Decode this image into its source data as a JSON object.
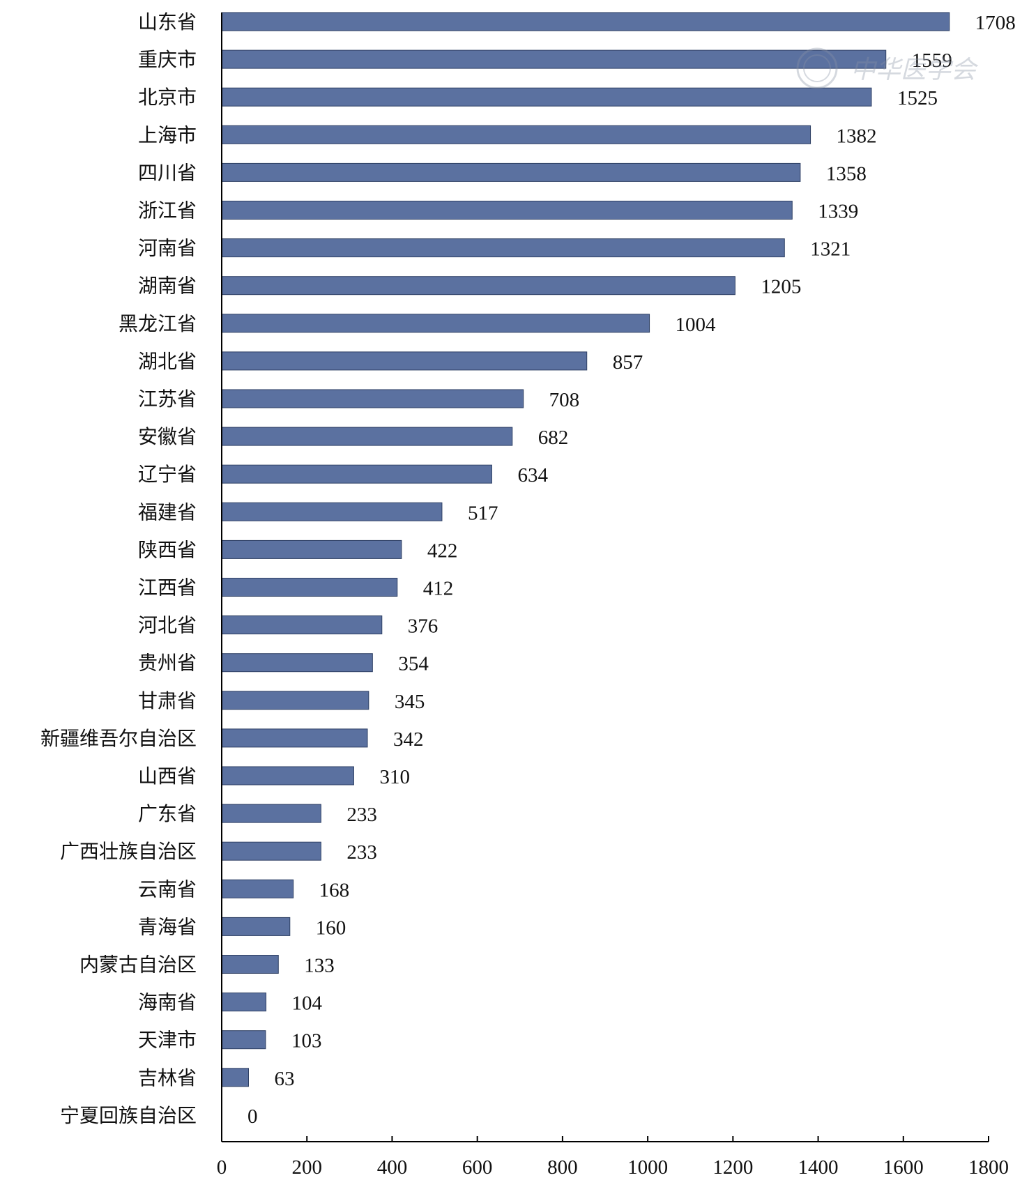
{
  "chart_data": {
    "type": "bar",
    "orientation": "horizontal",
    "categories": [
      "山东省",
      "重庆市",
      "北京市",
      "上海市",
      "四川省",
      "浙江省",
      "河南省",
      "湖南省",
      "黑龙江省",
      "湖北省",
      "江苏省",
      "安徽省",
      "辽宁省",
      "福建省",
      "陕西省",
      "江西省",
      "河北省",
      "贵州省",
      "甘肃省",
      "新疆维吾尔自治区",
      "山西省",
      "广东省",
      "广西壮族自治区",
      "云南省",
      "青海省",
      "内蒙古自治区",
      "海南省",
      "天津市",
      "吉林省",
      "宁夏回族自治区"
    ],
    "values": [
      1708,
      1559,
      1525,
      1382,
      1358,
      1339,
      1321,
      1205,
      1004,
      857,
      708,
      682,
      634,
      517,
      422,
      412,
      376,
      354,
      345,
      342,
      310,
      233,
      233,
      168,
      160,
      133,
      104,
      103,
      63,
      0
    ],
    "xticks": [
      0,
      200,
      400,
      600,
      800,
      1000,
      1200,
      1400,
      1600,
      1800
    ],
    "xlim": [
      0,
      1800
    ],
    "title": "",
    "xlabel": "",
    "ylabel": "",
    "grid": false,
    "legend": "none",
    "colors": {
      "bar": "#5b71a0",
      "bar_edge": "#2e3f63"
    }
  },
  "watermark": {
    "text": "中华医学会"
  }
}
